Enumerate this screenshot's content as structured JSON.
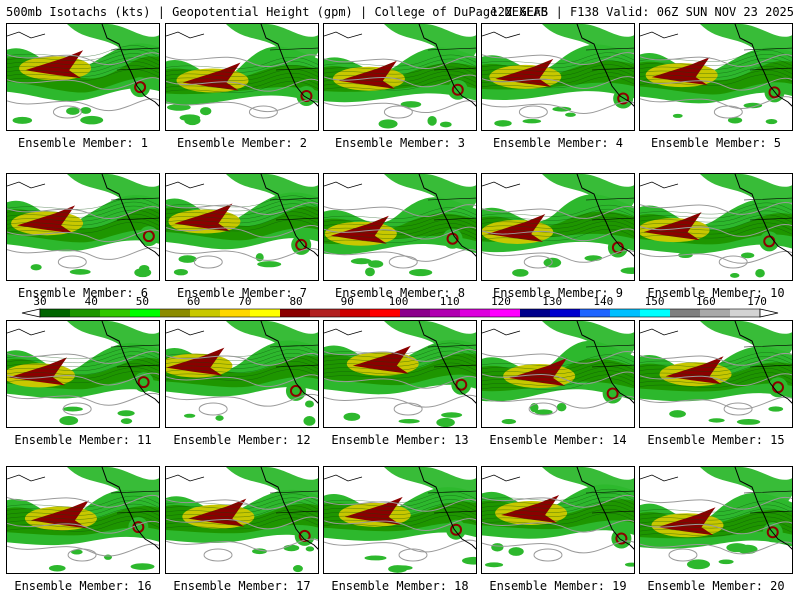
{
  "header": {
    "left": "500mb Isotachs (kts) | Geopotential Height (gpm) | College of DuPage NEXLAB",
    "right": "12Z GEFS | F138 Valid: 06Z SUN NOV 23 2025"
  },
  "panel_label_prefix": "Ensemble Member: ",
  "members": [
    {
      "id": "1",
      "label": "Ensemble Member: 1"
    },
    {
      "id": "2",
      "label": "Ensemble Member: 2"
    },
    {
      "id": "3",
      "label": "Ensemble Member: 3"
    },
    {
      "id": "4",
      "label": "Ensemble Member: 4"
    },
    {
      "id": "5",
      "label": "Ensemble Member: 5"
    },
    {
      "id": "6",
      "label": "Ensemble Member: 6"
    },
    {
      "id": "7",
      "label": "Ensemble Member: 7"
    },
    {
      "id": "8",
      "label": "Ensemble Member: 8"
    },
    {
      "id": "9",
      "label": "Ensemble Member: 9"
    },
    {
      "id": "10",
      "label": "Ensemble Member: 10"
    },
    {
      "id": "11",
      "label": "Ensemble Member: 11"
    },
    {
      "id": "12",
      "label": "Ensemble Member: 12"
    },
    {
      "id": "13",
      "label": "Ensemble Member: 13"
    },
    {
      "id": "14",
      "label": "Ensemble Member: 14"
    },
    {
      "id": "15",
      "label": "Ensemble Member: 15"
    },
    {
      "id": "16",
      "label": "Ensemble Member: 16"
    },
    {
      "id": "17",
      "label": "Ensemble Member: 17"
    },
    {
      "id": "18",
      "label": "Ensemble Member: 18"
    },
    {
      "id": "19",
      "label": "Ensemble Member: 19"
    },
    {
      "id": "20",
      "label": "Ensemble Member: 20"
    }
  ],
  "colorbar": {
    "unit": "kts",
    "tick_labels": [
      "30",
      "40",
      "50",
      "60",
      "70",
      "80",
      "90",
      "100",
      "110",
      "120",
      "130",
      "140",
      "150",
      "160",
      "170"
    ],
    "colors": [
      "#006400",
      "#1e9600",
      "#32c800",
      "#00ff00",
      "#8b8b00",
      "#c8c800",
      "#ffd700",
      "#ffff00",
      "#8b0000",
      "#b22222",
      "#cd0000",
      "#ff0000",
      "#8b008b",
      "#b000b0",
      "#dd00dd",
      "#ff00ff",
      "#00008b",
      "#0000cd",
      "#1e64ff",
      "#00bfff",
      "#00ffff",
      "#808080",
      "#a9a9a9",
      "#d3d3d3"
    ]
  },
  "colors": {
    "jet_light": "#2db82d",
    "jet_medium": "#1e9600",
    "jet_yellow": "#c8c800",
    "jet_core": "#8b0000",
    "height_contour": "#9a9a9a",
    "coastline": "#000000"
  }
}
